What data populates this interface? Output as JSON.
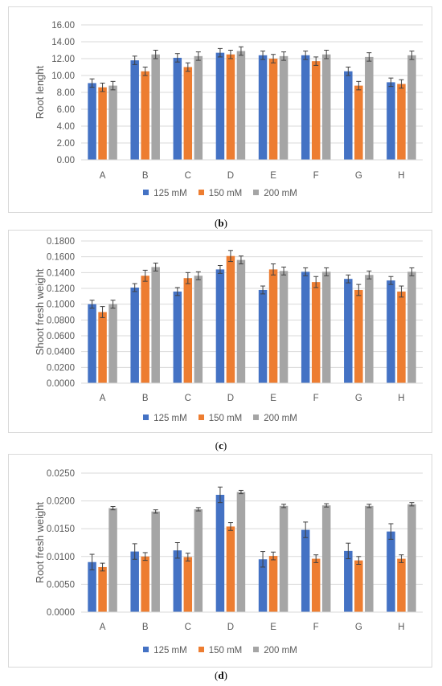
{
  "chart_data": [
    {
      "type": "bar",
      "panel_label": "b",
      "ylabel": "Root lenght",
      "categories": [
        "A",
        "B",
        "C",
        "D",
        "E",
        "F",
        "G",
        "H"
      ],
      "ylim": [
        0,
        16
      ],
      "yticks": [
        "0.00",
        "2.00",
        "4.00",
        "6.00",
        "8.00",
        "10.00",
        "12.00",
        "14.00",
        "16.00"
      ],
      "ystep": 2,
      "grid": true,
      "legend_position": "bottom",
      "series": [
        {
          "name": "125 mM",
          "color": "#4472c4",
          "values": [
            9.1,
            11.8,
            12.1,
            12.7,
            12.4,
            12.4,
            10.5,
            9.2
          ],
          "errors": [
            0.5,
            0.5,
            0.5,
            0.5,
            0.5,
            0.5,
            0.5,
            0.5
          ]
        },
        {
          "name": "150 mM",
          "color": "#ed7d31",
          "values": [
            8.6,
            10.5,
            11.0,
            12.5,
            12.0,
            11.7,
            8.8,
            9.0
          ],
          "errors": [
            0.5,
            0.5,
            0.5,
            0.5,
            0.5,
            0.5,
            0.5,
            0.5
          ]
        },
        {
          "name": "200 mM",
          "color": "#a5a5a5",
          "values": [
            8.8,
            12.5,
            12.3,
            12.9,
            12.3,
            12.5,
            12.2,
            12.4
          ],
          "errors": [
            0.5,
            0.5,
            0.5,
            0.5,
            0.5,
            0.5,
            0.5,
            0.5
          ]
        }
      ]
    },
    {
      "type": "bar",
      "panel_label": "c",
      "ylabel": "Shoot fresh weight",
      "categories": [
        "A",
        "B",
        "C",
        "D",
        "E",
        "F",
        "G",
        "H"
      ],
      "ylim": [
        0,
        0.18
      ],
      "yticks": [
        "0.0000",
        "0.0200",
        "0.0400",
        "0.0600",
        "0.0800",
        "0.1000",
        "0.1200",
        "0.1400",
        "0.1600",
        "0.1800"
      ],
      "ystep": 0.02,
      "grid": true,
      "legend_position": "bottom",
      "series": [
        {
          "name": "125 mM",
          "color": "#4472c4",
          "values": [
            0.1,
            0.121,
            0.116,
            0.144,
            0.118,
            0.141,
            0.132,
            0.13
          ],
          "errors": [
            0.005,
            0.005,
            0.005,
            0.005,
            0.005,
            0.005,
            0.005,
            0.005
          ]
        },
        {
          "name": "150 mM",
          "color": "#ed7d31",
          "values": [
            0.09,
            0.136,
            0.133,
            0.161,
            0.144,
            0.128,
            0.118,
            0.116
          ],
          "errors": [
            0.007,
            0.007,
            0.007,
            0.007,
            0.007,
            0.007,
            0.007,
            0.007
          ]
        },
        {
          "name": "200 mM",
          "color": "#a5a5a5",
          "values": [
            0.1,
            0.147,
            0.136,
            0.156,
            0.142,
            0.141,
            0.137,
            0.141
          ],
          "errors": [
            0.005,
            0.005,
            0.005,
            0.005,
            0.005,
            0.005,
            0.005,
            0.005
          ]
        }
      ]
    },
    {
      "type": "bar",
      "panel_label": "d",
      "ylabel": "Root fresh weight",
      "categories": [
        "A",
        "B",
        "C",
        "D",
        "E",
        "F",
        "G",
        "H"
      ],
      "ylim": [
        0,
        0.025
      ],
      "yticks": [
        "0.0000",
        "0.0050",
        "0.0100",
        "0.0150",
        "0.0200",
        "0.0250"
      ],
      "ystep": 0.005,
      "grid": true,
      "legend_position": "bottom",
      "series": [
        {
          "name": "125 mM",
          "color": "#4472c4",
          "values": [
            0.009,
            0.0109,
            0.0111,
            0.0211,
            0.0095,
            0.0148,
            0.011,
            0.0145
          ],
          "errors": [
            0.0014,
            0.0014,
            0.0014,
            0.0014,
            0.0014,
            0.0014,
            0.0014,
            0.0014
          ]
        },
        {
          "name": "150 mM",
          "color": "#ed7d31",
          "values": [
            0.0081,
            0.01,
            0.0099,
            0.0154,
            0.0101,
            0.0096,
            0.0093,
            0.0096
          ],
          "errors": [
            0.0007,
            0.0007,
            0.0007,
            0.0007,
            0.0007,
            0.0007,
            0.0007,
            0.0007
          ]
        },
        {
          "name": "200 mM",
          "color": "#a5a5a5",
          "values": [
            0.0187,
            0.0181,
            0.0185,
            0.0216,
            0.0191,
            0.0192,
            0.0191,
            0.0194
          ],
          "errors": [
            0.0003,
            0.0003,
            0.0003,
            0.0003,
            0.0003,
            0.0003,
            0.0003,
            0.0003
          ]
        }
      ]
    }
  ]
}
